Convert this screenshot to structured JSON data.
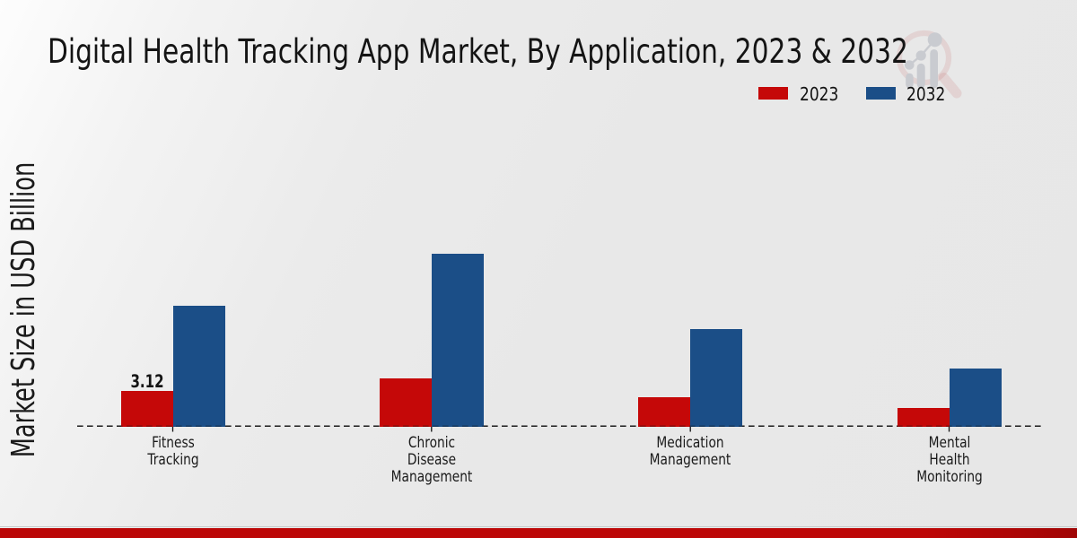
{
  "title": {
    "text": "Digital Health Tracking App Market, By Application, 2023 & 2032"
  },
  "legend": {
    "items": [
      {
        "label": "2023",
        "color": "#c50808"
      },
      {
        "label": "2032",
        "color": "#1b4e87"
      }
    ]
  },
  "y_axis": {
    "label": "Market Size in USD Billion"
  },
  "watermark": {
    "name": "market-research-future-logo"
  },
  "footer": {
    "accent_color": "#bb0707"
  },
  "chart_data": {
    "type": "bar",
    "title": "Digital Health Tracking App Market, By Application, 2023 & 2032",
    "xlabel": "",
    "ylabel": "Market Size in USD Billion",
    "unit": "USD Billion",
    "categories": [
      "Fitness Tracking",
      "Chronic Disease Management",
      "Medication Management",
      "Mental Health Monitoring"
    ],
    "category_label_lines": [
      [
        "Fitness",
        "Tracking"
      ],
      [
        "Chronic",
        "Disease",
        "Management"
      ],
      [
        "Medication",
        "Management"
      ],
      [
        "Mental",
        "Health",
        "Monitoring"
      ]
    ],
    "series": [
      {
        "name": "2023",
        "color": "#c50808",
        "values": [
          3.12,
          4.25,
          2.58,
          1.6
        ]
      },
      {
        "name": "2032",
        "color": "#1b4e87",
        "values": [
          10.52,
          15.05,
          8.52,
          5.05
        ]
      }
    ],
    "bar_labels": [
      {
        "series_index": 0,
        "category_index": 0,
        "text": "3.12"
      }
    ],
    "ylim": [
      0,
      16
    ],
    "grid": false,
    "legend_position": "top-right",
    "baseline_style": "dashed"
  }
}
